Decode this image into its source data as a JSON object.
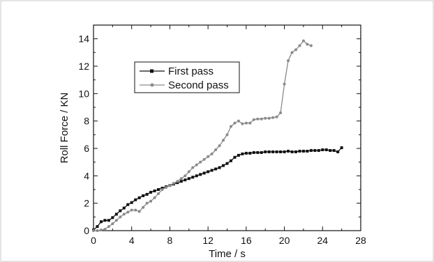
{
  "chart_data": {
    "type": "line",
    "title": "",
    "xlabel": "Time / s",
    "ylabel": "Roll Force / KN",
    "xlim": [
      0,
      28
    ],
    "ylim": [
      0,
      15
    ],
    "xticks": [
      0,
      4,
      8,
      12,
      16,
      20,
      24,
      28
    ],
    "yticks": [
      0,
      2,
      4,
      6,
      8,
      10,
      12,
      14
    ],
    "xtick_labels": [
      "0",
      "4",
      "8",
      "12",
      "16",
      "20",
      "24",
      "28"
    ],
    "ytick_labels": [
      "0",
      "2",
      "4",
      "6",
      "8",
      "10",
      "12",
      "14"
    ],
    "grid": false,
    "legend_position": "upper-left",
    "series": [
      {
        "name": "First pass",
        "color": "#111111",
        "marker": "square",
        "x": [
          0,
          0.4,
          0.8,
          1.2,
          1.6,
          2.0,
          2.4,
          2.8,
          3.2,
          3.6,
          4.0,
          4.4,
          4.8,
          5.2,
          5.6,
          6.0,
          6.4,
          6.8,
          7.2,
          7.6,
          8.0,
          8.4,
          8.8,
          9.2,
          9.6,
          10.0,
          10.4,
          10.8,
          11.2,
          11.6,
          12.0,
          12.4,
          12.8,
          13.2,
          13.6,
          14.0,
          14.4,
          14.8,
          15.2,
          15.6,
          16.0,
          16.4,
          16.8,
          17.2,
          17.6,
          18.0,
          18.4,
          18.8,
          19.2,
          19.6,
          20.0,
          20.4,
          20.8,
          21.2,
          21.6,
          22.0,
          22.4,
          22.8,
          23.2,
          23.6,
          24.0,
          24.4,
          24.8,
          25.2,
          25.6,
          26.0
        ],
        "y": [
          0.05,
          0.3,
          0.65,
          0.75,
          0.75,
          0.95,
          1.2,
          1.45,
          1.65,
          1.9,
          2.05,
          2.25,
          2.4,
          2.55,
          2.65,
          2.8,
          2.9,
          3.0,
          3.1,
          3.2,
          3.3,
          3.4,
          3.5,
          3.6,
          3.7,
          3.8,
          3.9,
          4.0,
          4.1,
          4.2,
          4.3,
          4.4,
          4.5,
          4.6,
          4.75,
          4.9,
          5.1,
          5.35,
          5.5,
          5.6,
          5.65,
          5.65,
          5.7,
          5.7,
          5.7,
          5.75,
          5.75,
          5.75,
          5.75,
          5.75,
          5.75,
          5.8,
          5.75,
          5.75,
          5.8,
          5.8,
          5.8,
          5.85,
          5.85,
          5.85,
          5.9,
          5.9,
          5.85,
          5.85,
          5.75,
          6.05
        ]
      },
      {
        "name": "Second pass",
        "color": "#8a8a8a",
        "marker": "circle",
        "x": [
          0,
          0.4,
          0.8,
          1.2,
          1.6,
          2.0,
          2.4,
          2.8,
          3.2,
          3.6,
          4.0,
          4.4,
          4.8,
          5.2,
          5.6,
          6.0,
          6.4,
          6.8,
          7.2,
          7.6,
          8.0,
          8.4,
          8.8,
          9.2,
          9.6,
          10.0,
          10.4,
          10.8,
          11.2,
          11.6,
          12.0,
          12.4,
          12.8,
          13.2,
          13.6,
          14.0,
          14.4,
          14.8,
          15.2,
          15.6,
          16.0,
          16.4,
          16.8,
          17.2,
          17.6,
          18.0,
          18.4,
          18.8,
          19.2,
          19.6,
          20.0,
          20.4,
          20.8,
          21.2,
          21.6,
          22.0,
          22.4,
          22.8
        ],
        "y": [
          0.0,
          0.0,
          0.05,
          0.1,
          0.3,
          0.5,
          0.75,
          1.0,
          1.2,
          1.35,
          1.5,
          1.5,
          1.4,
          1.7,
          2.0,
          2.15,
          2.4,
          2.7,
          3.0,
          3.15,
          3.3,
          3.45,
          3.6,
          3.8,
          4.0,
          4.3,
          4.6,
          4.8,
          5.0,
          5.2,
          5.4,
          5.6,
          5.9,
          6.2,
          6.6,
          7.0,
          7.6,
          7.85,
          8.0,
          7.8,
          7.85,
          7.85,
          8.1,
          8.15,
          8.15,
          8.2,
          8.2,
          8.25,
          8.3,
          8.6,
          10.7,
          12.4,
          13.0,
          13.2,
          13.5,
          13.85,
          13.6,
          13.5
        ]
      }
    ]
  }
}
